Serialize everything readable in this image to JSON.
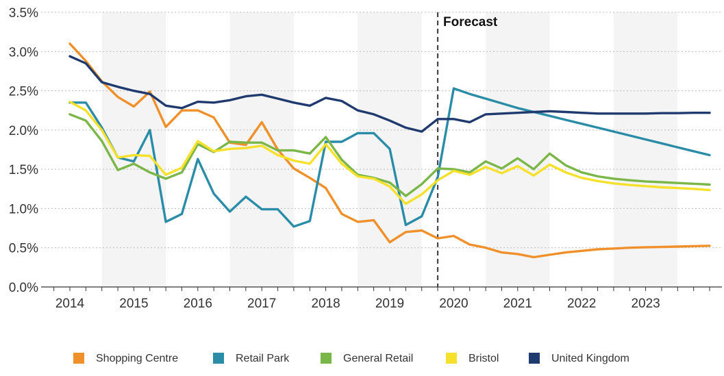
{
  "chart_data": {
    "type": "line",
    "x_start": 2014.0,
    "x_step": 0.25,
    "xlim": [
      2013.6,
      2024.05
    ],
    "ylim": [
      0,
      3.5
    ],
    "y_ticks": [
      0,
      0.5,
      1.0,
      1.5,
      2.0,
      2.5,
      3.0,
      3.5
    ],
    "y_tick_labels": [
      "0.0%",
      "0.5%",
      "1.0%",
      "1.5%",
      "2.0%",
      "2.5%",
      "3.0%",
      "3.5%"
    ],
    "x_tick_labels": [
      "2014",
      "2015",
      "2016",
      "2017",
      "2018",
      "2019",
      "2020",
      "2021",
      "2022",
      "2023"
    ],
    "shaded_years": [
      2015,
      2017,
      2019,
      2021,
      2023
    ],
    "forecast_x": 2019.75,
    "forecast_label": "Forecast",
    "grid": true,
    "legend_position": "bottom",
    "series": [
      {
        "name": "Shopping Centre",
        "color": "#f0902a",
        "values": [
          3.1,
          2.88,
          2.62,
          2.42,
          2.3,
          2.49,
          2.04,
          2.25,
          2.25,
          2.16,
          1.84,
          1.81,
          2.1,
          1.75,
          1.51,
          1.39,
          1.26,
          0.93,
          0.83,
          0.85,
          0.57,
          0.7,
          0.72,
          0.62,
          0.65,
          0.54,
          0.5,
          0.44,
          0.42,
          0.38,
          0.41,
          0.44,
          0.46,
          0.48,
          0.49,
          0.5,
          0.505,
          0.51,
          0.515,
          0.52,
          0.525
        ]
      },
      {
        "name": "Retail Park",
        "color": "#2b8ca8",
        "values": [
          2.35,
          2.35,
          2.03,
          1.65,
          1.6,
          2.0,
          0.83,
          0.93,
          1.63,
          1.19,
          0.96,
          1.15,
          0.99,
          0.99,
          0.77,
          0.84,
          1.85,
          1.85,
          1.96,
          1.96,
          1.76,
          0.79,
          0.9,
          1.4,
          2.53,
          2.46,
          2.4,
          2.34,
          2.28,
          2.23,
          2.18,
          2.13,
          2.08,
          2.03,
          1.98,
          1.93,
          1.88,
          1.83,
          1.78,
          1.73,
          1.68
        ]
      },
      {
        "name": "General Retail",
        "color": "#7ab648",
        "values": [
          2.2,
          2.12,
          1.86,
          1.49,
          1.57,
          1.46,
          1.38,
          1.46,
          1.82,
          1.72,
          1.85,
          1.84,
          1.84,
          1.74,
          1.74,
          1.7,
          1.91,
          1.62,
          1.43,
          1.39,
          1.33,
          1.16,
          1.31,
          1.51,
          1.5,
          1.46,
          1.6,
          1.51,
          1.64,
          1.5,
          1.7,
          1.55,
          1.46,
          1.41,
          1.38,
          1.36,
          1.345,
          1.335,
          1.325,
          1.315,
          1.305
        ]
      },
      {
        "name": "Bristol",
        "color": "#f5e12c",
        "values": [
          2.36,
          2.25,
          2.0,
          1.65,
          1.68,
          1.67,
          1.43,
          1.52,
          1.86,
          1.73,
          1.76,
          1.77,
          1.8,
          1.68,
          1.61,
          1.57,
          1.82,
          1.57,
          1.41,
          1.38,
          1.28,
          1.06,
          1.18,
          1.36,
          1.48,
          1.43,
          1.53,
          1.45,
          1.54,
          1.42,
          1.56,
          1.46,
          1.39,
          1.35,
          1.32,
          1.3,
          1.285,
          1.27,
          1.26,
          1.25,
          1.235
        ]
      },
      {
        "name": "United Kingdom",
        "color": "#1f3a6e",
        "values": [
          2.94,
          2.85,
          2.61,
          2.55,
          2.5,
          2.46,
          2.31,
          2.28,
          2.36,
          2.35,
          2.38,
          2.43,
          2.45,
          2.4,
          2.35,
          2.31,
          2.41,
          2.37,
          2.25,
          2.2,
          2.12,
          2.03,
          1.98,
          2.14,
          2.14,
          2.1,
          2.2,
          2.21,
          2.22,
          2.23,
          2.24,
          2.23,
          2.22,
          2.21,
          2.21,
          2.21,
          2.21,
          2.215,
          2.215,
          2.22,
          2.22
        ]
      }
    ]
  }
}
